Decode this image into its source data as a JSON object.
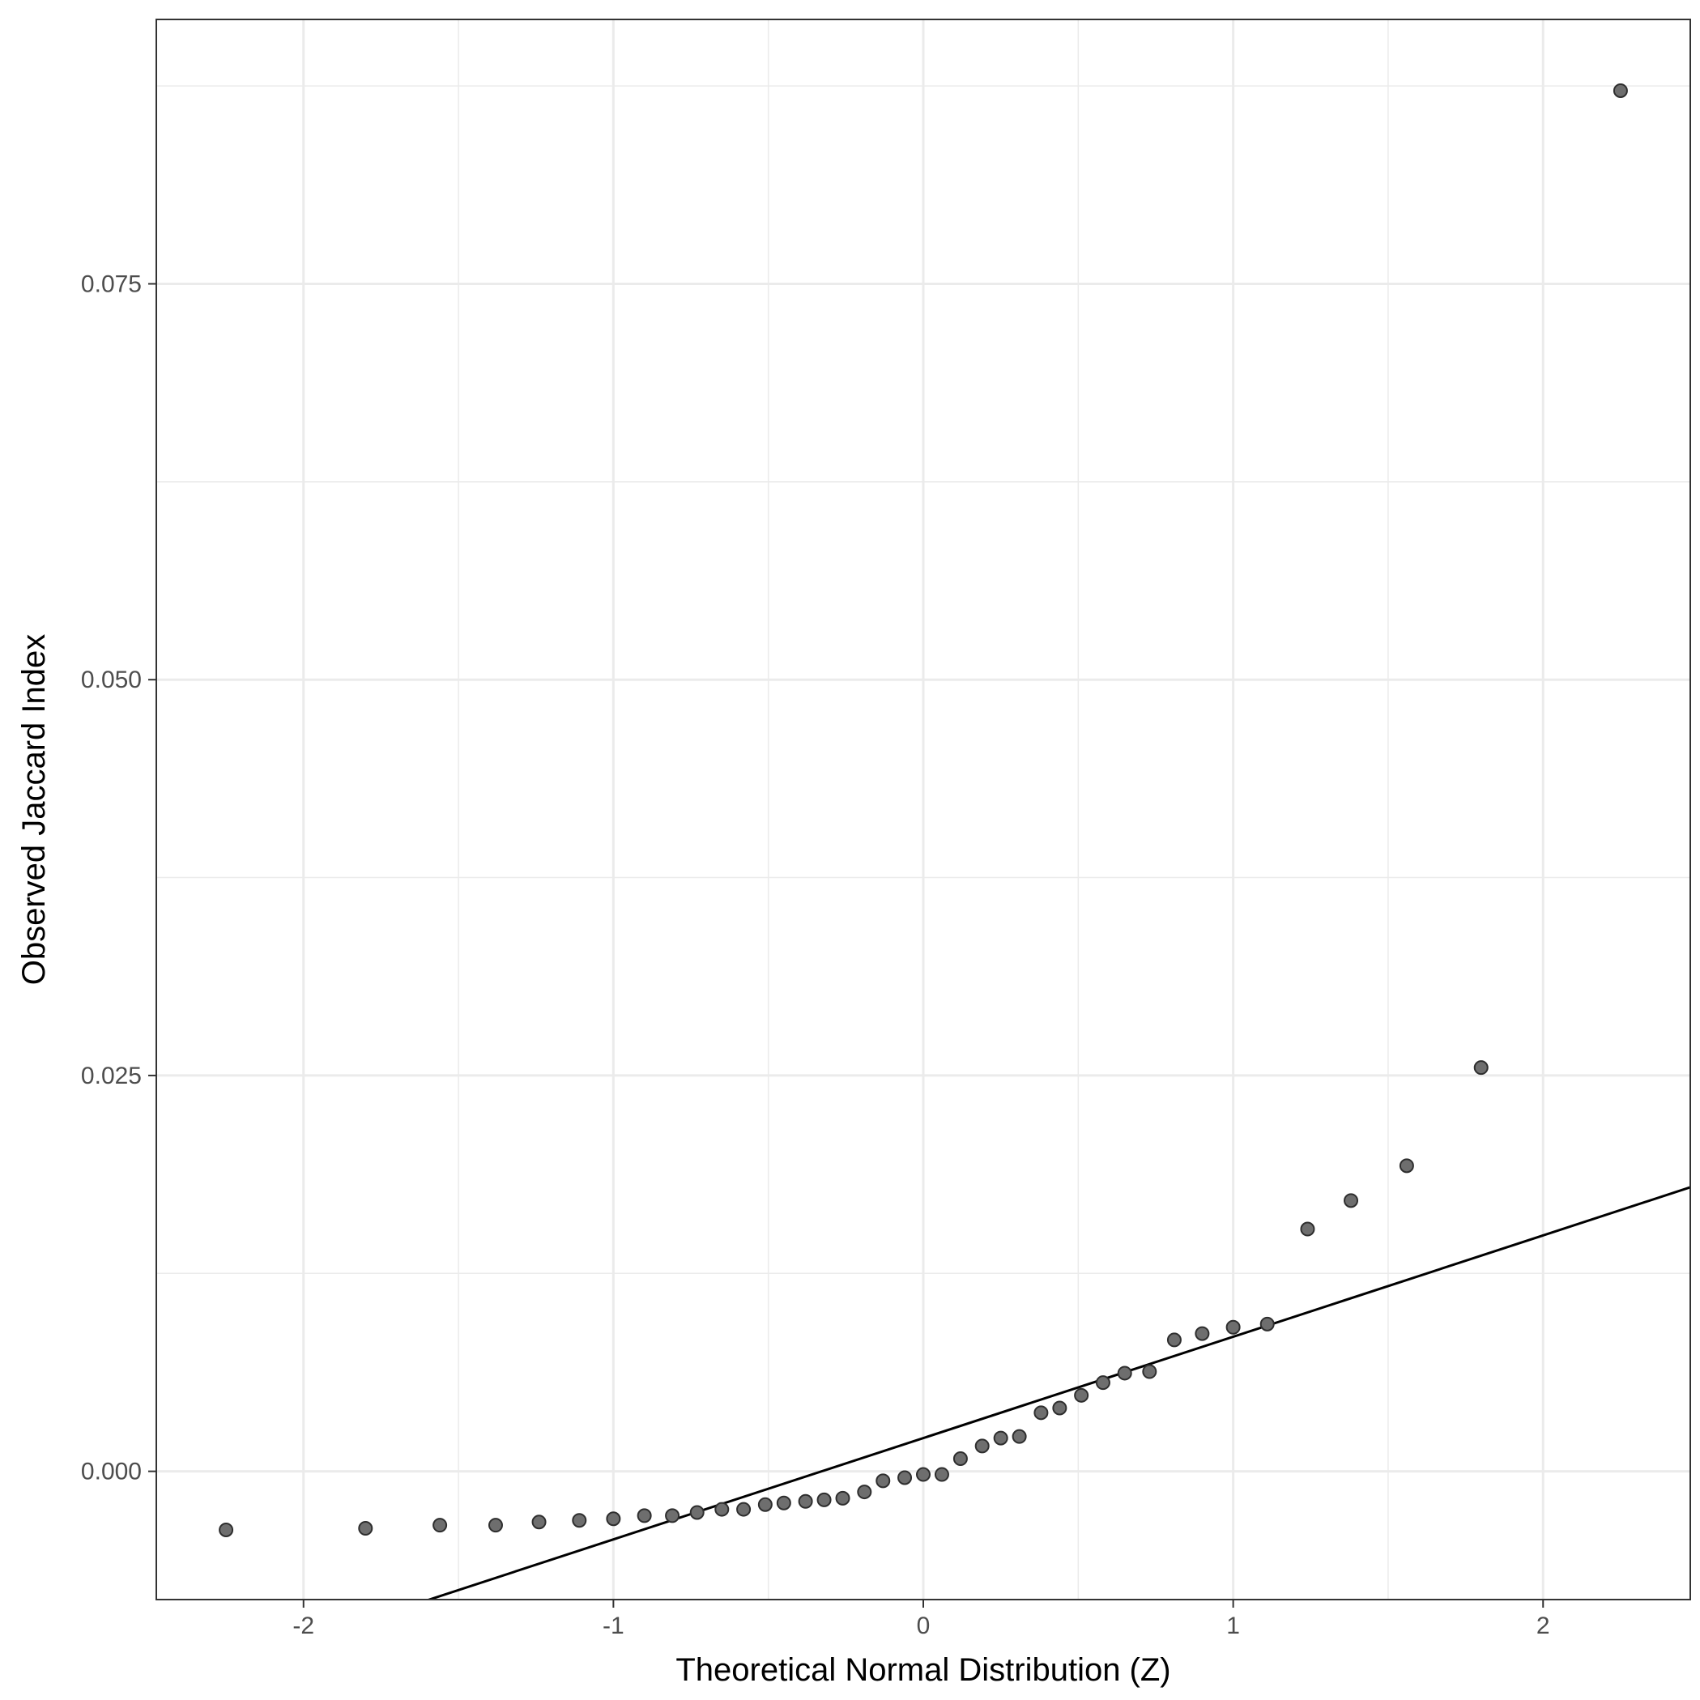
{
  "chart_data": {
    "type": "scatter",
    "title": "",
    "xlabel": "Theoretical Normal Distribution (Z)",
    "ylabel": "Observed Jaccard Index",
    "xlim": [
      -2.475,
      2.475
    ],
    "ylim": [
      -0.0081,
      0.0917
    ],
    "x_ticks": [
      -2,
      -1,
      0,
      1,
      2
    ],
    "x_tick_labels": [
      "-2",
      "-1",
      "0",
      "1",
      "2"
    ],
    "y_ticks": [
      0.0,
      0.025,
      0.05,
      0.075
    ],
    "y_tick_labels": [
      "0.000",
      "0.025",
      "0.050",
      "0.075"
    ],
    "grid": true,
    "reference_line": {
      "intercept": 0.0021,
      "slope": 0.0064
    },
    "points": [
      [
        -2.25,
        -0.0037
      ],
      [
        -1.8,
        -0.0036
      ],
      [
        -1.56,
        -0.0034
      ],
      [
        -1.38,
        -0.0034
      ],
      [
        -1.24,
        -0.0032
      ],
      [
        -1.11,
        -0.0031
      ],
      [
        -1.0,
        -0.003
      ],
      [
        -0.9,
        -0.0028
      ],
      [
        -0.81,
        -0.0028
      ],
      [
        -0.73,
        -0.0026
      ],
      [
        -0.65,
        -0.0024
      ],
      [
        -0.58,
        -0.0024
      ],
      [
        -0.51,
        -0.0021
      ],
      [
        -0.45,
        -0.002
      ],
      [
        -0.38,
        -0.0019
      ],
      [
        -0.32,
        -0.0018
      ],
      [
        -0.26,
        -0.0017
      ],
      [
        -0.19,
        -0.0013
      ],
      [
        -0.13,
        -0.0006
      ],
      [
        -0.06,
        -0.0004
      ],
      [
        0.0,
        -0.0002
      ],
      [
        0.06,
        -0.0002
      ],
      [
        0.12,
        0.0008
      ],
      [
        0.19,
        0.0016
      ],
      [
        0.25,
        0.0021
      ],
      [
        0.31,
        0.0022
      ],
      [
        0.38,
        0.0037
      ],
      [
        0.44,
        0.004
      ],
      [
        0.51,
        0.0048
      ],
      [
        0.58,
        0.0056
      ],
      [
        0.65,
        0.0062
      ],
      [
        0.73,
        0.0063
      ],
      [
        0.81,
        0.0083
      ],
      [
        0.9,
        0.0087
      ],
      [
        1.0,
        0.0091
      ],
      [
        1.11,
        0.0093
      ],
      [
        1.24,
        0.0153
      ],
      [
        1.38,
        0.0171
      ],
      [
        1.56,
        0.0193
      ],
      [
        1.8,
        0.0255
      ],
      [
        2.25,
        0.0872
      ]
    ],
    "colors": {
      "point_fill": "#6e6e6e",
      "point_stroke": "#2e2e2e",
      "line": "#000000",
      "grid": "#ebebeb",
      "frame": "#333333"
    }
  }
}
